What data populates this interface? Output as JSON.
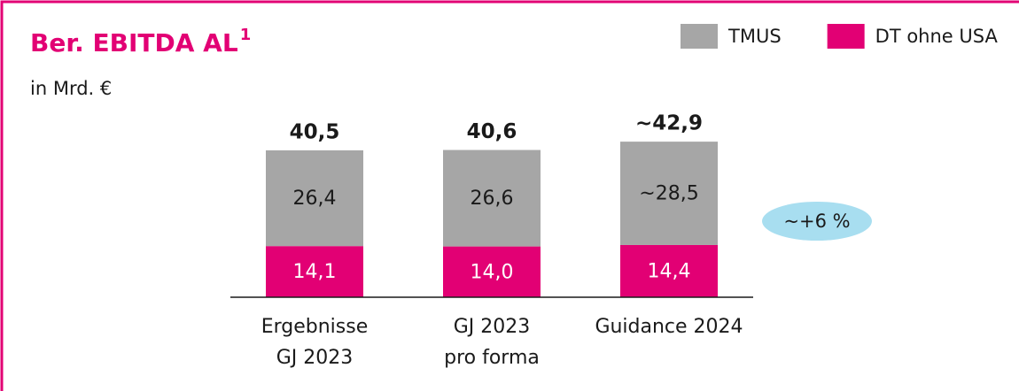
{
  "chart_data": {
    "type": "stacked_bar",
    "title": "Ber. EBITDA AL",
    "title_footnote": "1",
    "subtitle": "in Mrd. €",
    "categories": [
      "Ergebnisse\nGJ 2023",
      "GJ 2023\npro forma",
      "Guidance 2024"
    ],
    "series": [
      {
        "name": "DT ohne USA",
        "color": "#e20074",
        "values": [
          14.1,
          14.0,
          14.4
        ],
        "value_labels": [
          "14,1",
          "14,0",
          "14,4"
        ]
      },
      {
        "name": "TMUS",
        "color": "#a6a6a6",
        "values": [
          26.4,
          26.6,
          28.5
        ],
        "value_labels": [
          "26,4",
          "26,6",
          "~28,5"
        ]
      }
    ],
    "totals": [
      40.5,
      40.6,
      42.9
    ],
    "total_labels": [
      "40,5",
      "40,6",
      "~42,9"
    ],
    "legend_order": [
      "TMUS",
      "DT ohne USA"
    ],
    "annotation": "~+6 %",
    "annotation_color": "#a8def0"
  }
}
